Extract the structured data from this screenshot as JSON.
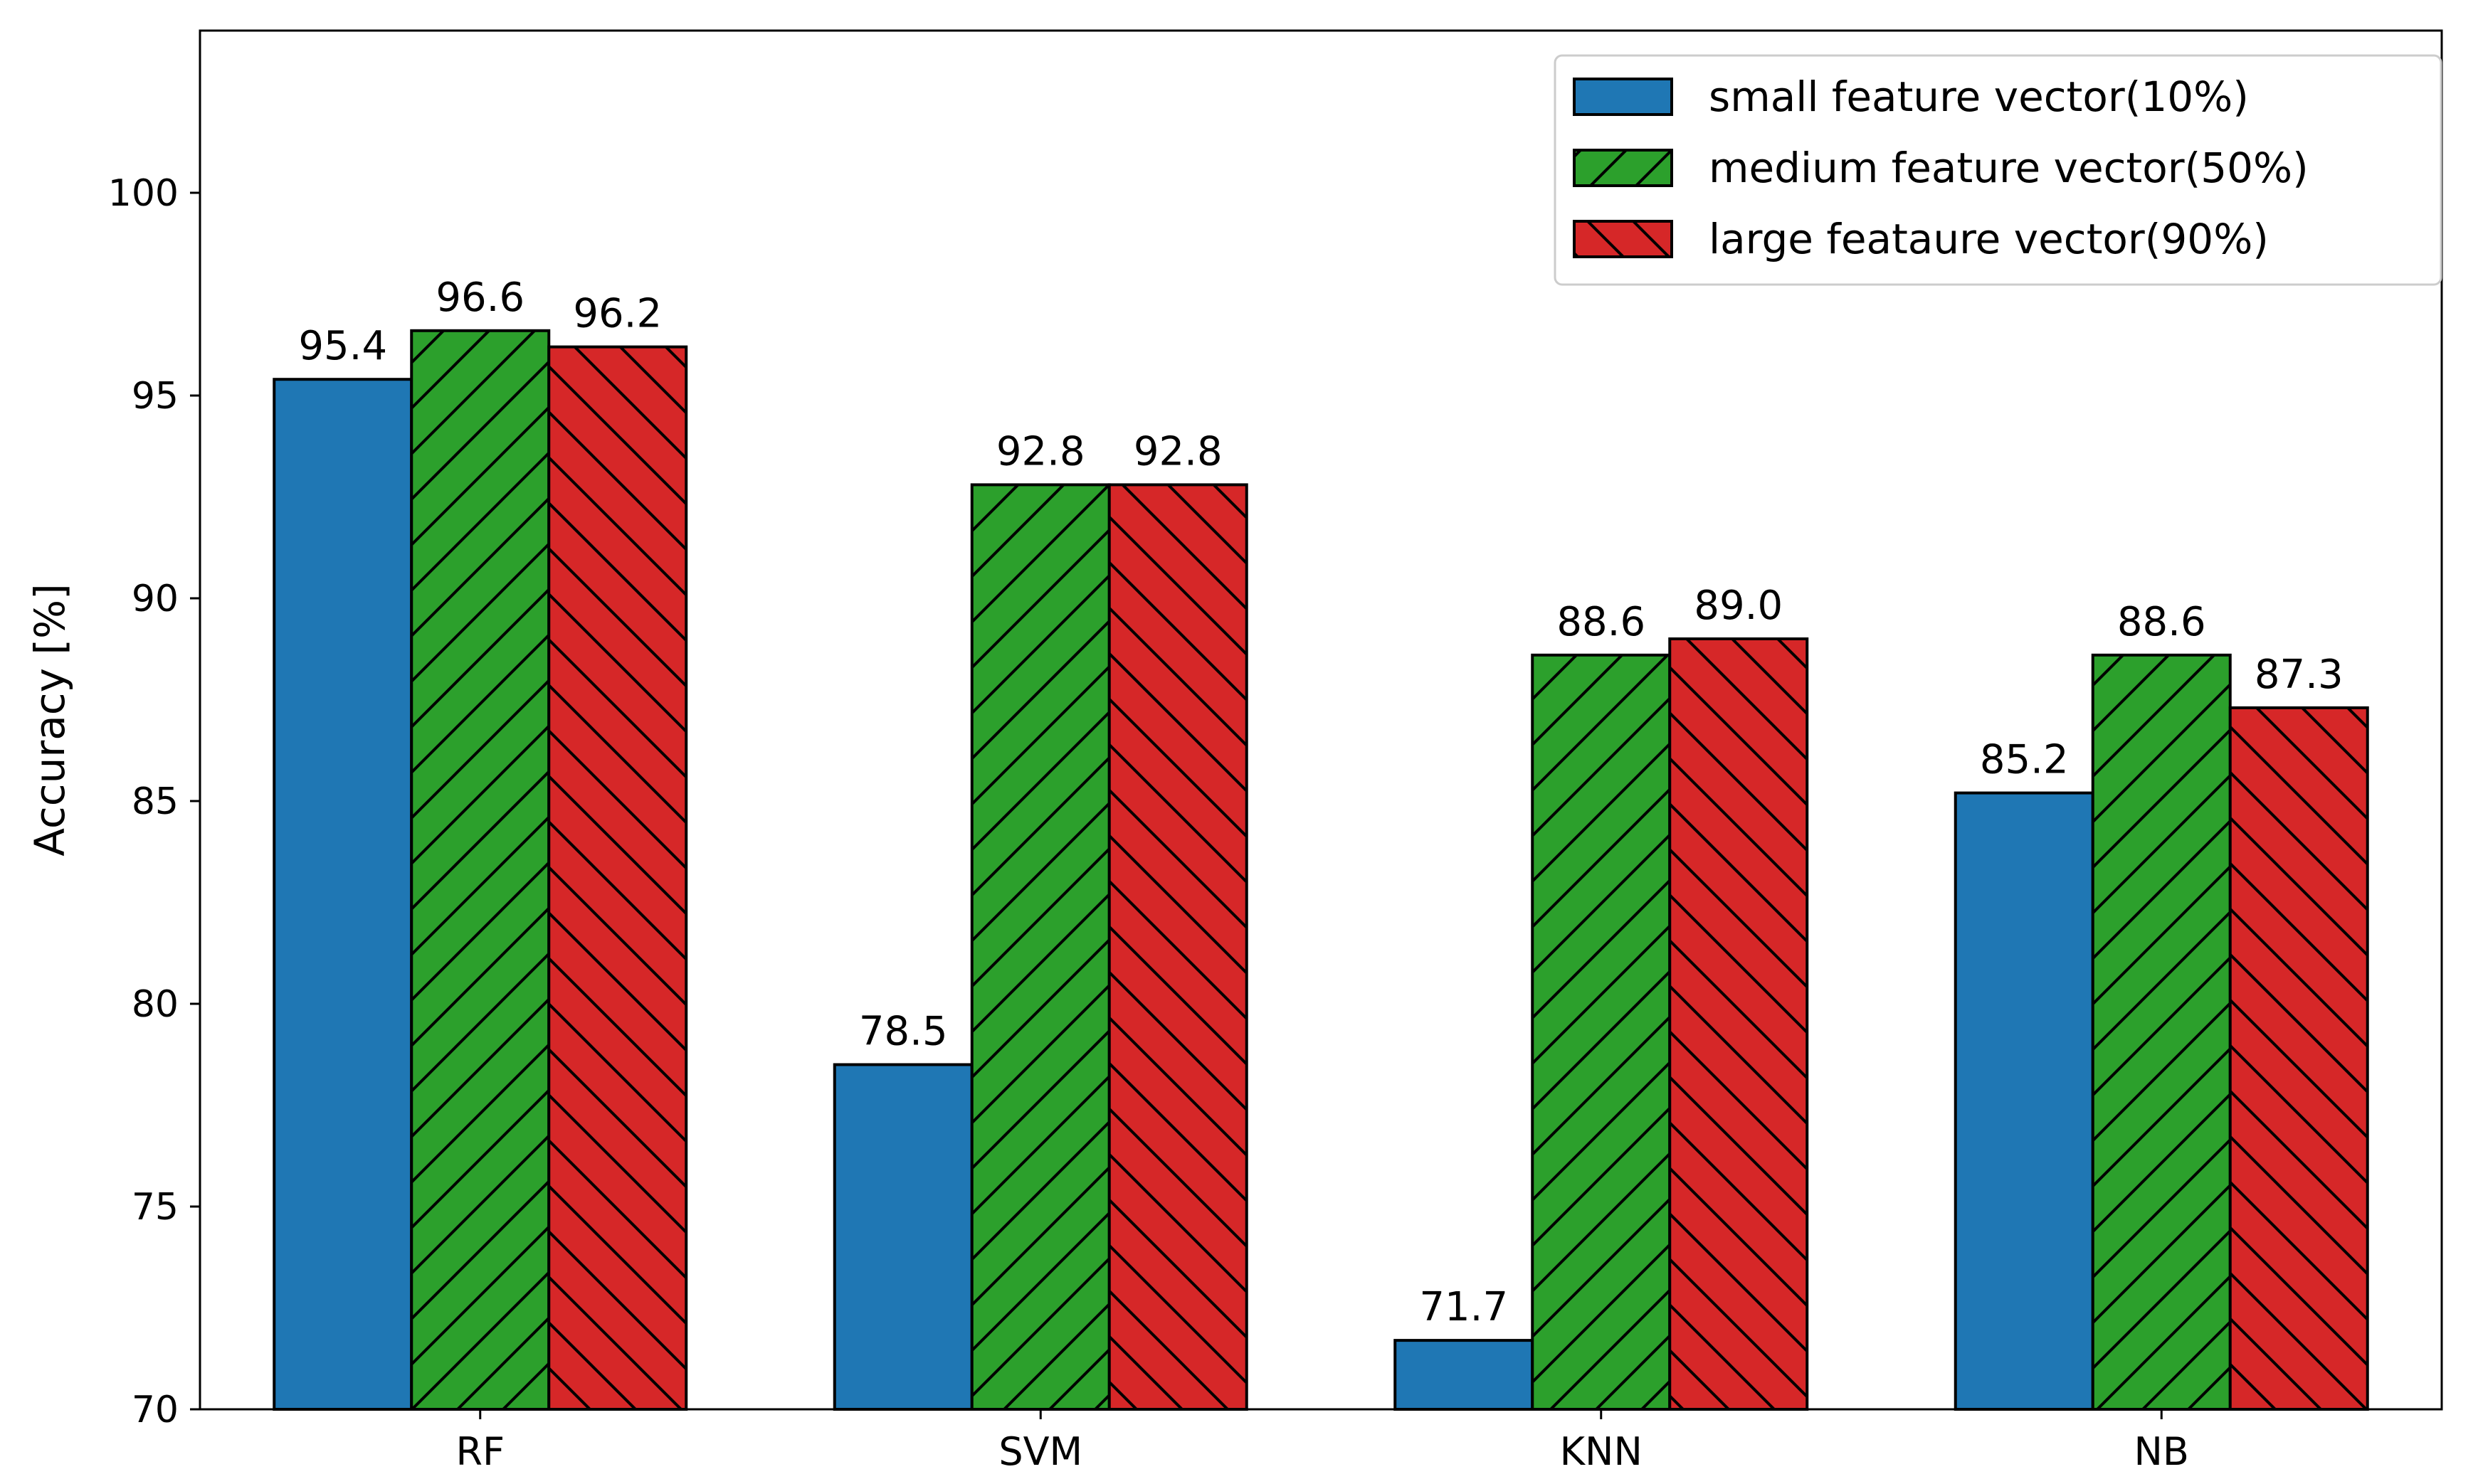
{
  "chart_data": {
    "type": "bar",
    "title": "",
    "xlabel": "",
    "ylabel": "Accuracy [%]",
    "ylim": [
      70,
      104
    ],
    "yticks": [
      70,
      75,
      80,
      85,
      90,
      95,
      100
    ],
    "grid": false,
    "legend_position": "top-right",
    "categories": [
      "RF",
      "SVM",
      "KNN",
      "NB"
    ],
    "series": [
      {
        "name": "small feature vector(10%)",
        "color": "#1f77b4",
        "hatch": "none",
        "values": [
          95.4,
          78.5,
          71.7,
          85.2
        ],
        "labels": [
          "95.4",
          "78.5",
          "71.7",
          "85.2"
        ]
      },
      {
        "name": "medium feature vector(50%)",
        "color": "#2ca02c",
        "hatch": "forward",
        "values": [
          96.6,
          92.8,
          88.6,
          88.6
        ],
        "labels": [
          "96.6",
          "92.8",
          "88.6",
          "88.6"
        ]
      },
      {
        "name": "large feataure vector(90%)",
        "color": "#d62728",
        "hatch": "back",
        "values": [
          96.2,
          92.8,
          89.0,
          87.3
        ],
        "labels": [
          "96.2",
          "92.8",
          "89.0",
          "87.3"
        ]
      }
    ]
  }
}
